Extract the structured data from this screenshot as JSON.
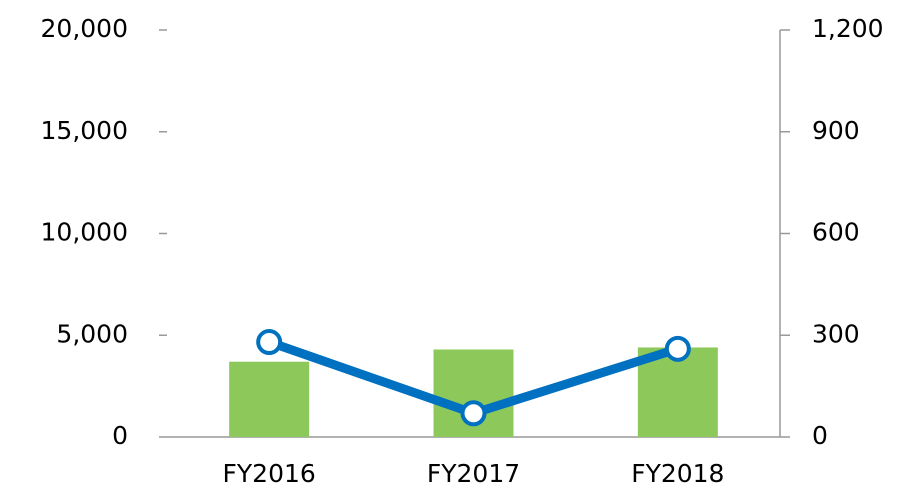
{
  "chart_data": {
    "type": "bar-line",
    "categories": [
      "FY2016",
      "FY2017",
      "FY2018"
    ],
    "series": [
      {
        "type": "bar",
        "color": "#8cc95a",
        "values": [
          3700,
          4300,
          4400
        ]
      },
      {
        "type": "line",
        "axis": "y2",
        "color": "#0070c0",
        "values": [
          280,
          70,
          260
        ]
      }
    ],
    "ylim": [
      0,
      20000
    ],
    "yticks": [
      0,
      {
        "value": 5000,
        "label": "5,000"
      },
      {
        "value": 10000,
        "label": "10,000"
      },
      {
        "value": 15000,
        "label": "15,000"
      },
      {
        "value": 20000,
        "label": "20,000"
      }
    ],
    "y2lim": [
      0,
      1200
    ],
    "y2ticks": [
      0,
      300,
      600,
      900,
      {
        "value": 1200,
        "label": "1,200"
      }
    ]
  }
}
